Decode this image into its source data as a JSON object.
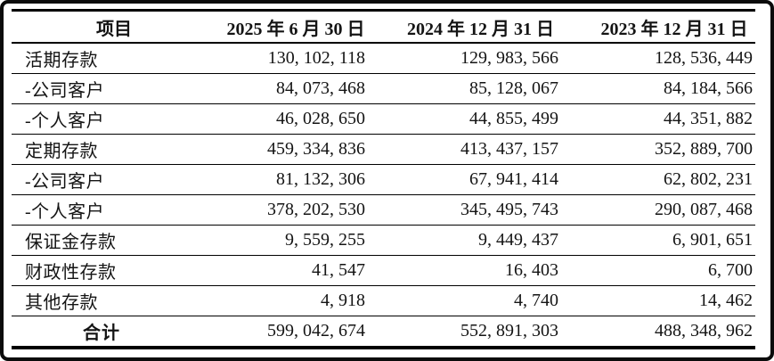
{
  "table": {
    "columns": [
      "项目",
      "2025 年 6 月 30 日",
      "2024 年 12 月 31 日",
      "2023 年 12 月 31 日"
    ],
    "rows": [
      {
        "label": "活期存款",
        "values": [
          "130, 102, 118",
          "129, 983, 566",
          "128, 536, 449"
        ],
        "is_total": false
      },
      {
        "label": "-公司客户",
        "values": [
          "84, 073, 468",
          "85, 128, 067",
          "84, 184, 566"
        ],
        "is_total": false
      },
      {
        "label": "-个人客户",
        "values": [
          "46, 028, 650",
          "44, 855, 499",
          "44, 351, 882"
        ],
        "is_total": false
      },
      {
        "label": "定期存款",
        "values": [
          "459, 334, 836",
          "413, 437, 157",
          "352, 889, 700"
        ],
        "is_total": false
      },
      {
        "label": "-公司客户",
        "values": [
          "81, 132, 306",
          "67, 941, 414",
          "62, 802, 231"
        ],
        "is_total": false
      },
      {
        "label": "-个人客户",
        "values": [
          "378, 202, 530",
          "345, 495, 743",
          "290, 087, 468"
        ],
        "is_total": false
      },
      {
        "label": "保证金存款",
        "values": [
          "9, 559, 255",
          "9, 449, 437",
          "6, 901, 651"
        ],
        "is_total": false
      },
      {
        "label": "财政性存款",
        "values": [
          "41, 547",
          "16, 403",
          "6, 700"
        ],
        "is_total": false
      },
      {
        "label": "其他存款",
        "values": [
          "4, 918",
          "4, 740",
          "14, 462"
        ],
        "is_total": false
      },
      {
        "label": "合计",
        "values": [
          "599, 042, 674",
          "552, 891, 303",
          "488, 348, 962"
        ],
        "is_total": true
      }
    ],
    "colors": {
      "border": "#000000",
      "text": "#141414",
      "frame": "#0b0b0b",
      "background": "#ffffff"
    }
  }
}
